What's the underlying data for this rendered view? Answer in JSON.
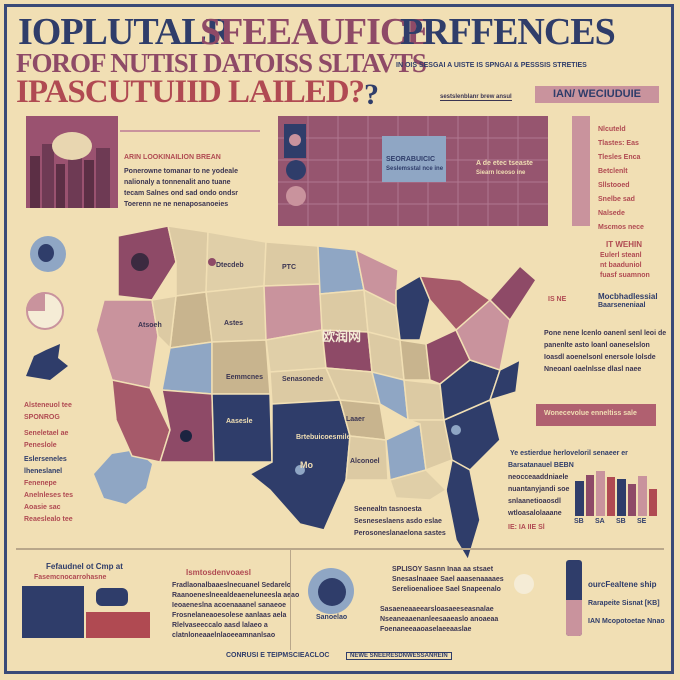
{
  "title": {
    "line1a": "IOPLUTALR",
    "line1b": "SFEEAUFICE",
    "line1c": "PRFFENCES",
    "line2": "FOROF NUTISI DATOISS SLTAVTS",
    "line3": "IPASCUTUIID LAILED?",
    "mark": "?"
  },
  "subtitle": "IN OIS SESGAI A UISTE IS SPNGAI & PESSSIS STRETIES",
  "tag_small": "sestslenblanr brew ansul",
  "tag_box": "IAN/ WECIUDUIE",
  "map_label": "欧润网",
  "palette": {
    "bg": "#f1dfb4",
    "navy": "#2f3d6a",
    "maroon": "#8e4a67",
    "rose": "#c9939d",
    "slate": "#8fa6c4",
    "tan": "#dccaa3",
    "red": "#b04a52"
  },
  "left_panel": {
    "heading": "ARIN LOOKINAILION BREAN",
    "lines": [
      "Ponerowne tomanar to ne yodeale",
      "nalionaly a tonnenalit ano tuane",
      "tecam Salnes ond sad ondo ondsr",
      "Toerenn ne ne nenaposanoeies"
    ]
  },
  "center_panel": {
    "box_title": "SEORABUICIC",
    "box_sub": "Seslemsstal nce ine",
    "right_title": "A de etec tseaste",
    "right_sub": "Siearn Iceoso ine"
  },
  "right_list": [
    "Nlcuteld",
    "Tlastes: Eas",
    "Tlesles Enca",
    "Betclenlt",
    "Sllstooed",
    "Snelbe sad",
    "Nalsede",
    "Mscmos nece"
  ],
  "right_block": {
    "title": "IT WEHIN",
    "lines": [
      "Eulerl steanl",
      "nt baaduniol",
      "fuasf suamnon"
    ]
  },
  "mid_right": {
    "tag": "IS NE",
    "title": "Mocbhadlessial",
    "sub": "Baarseneniaal",
    "para": [
      "Pone nene lcenlo oanenl senl leoi de",
      "panenlte asto loanl oaneselslon",
      "Ioasdl aoenelsonl enersole lolsde",
      "Nneoanl oaelnlsse dlasl naee"
    ]
  },
  "strip": "Wonecevolue enneltiss sale",
  "left_notes": [
    "Alsteneuol tee",
    "SPONROG",
    "Seneletael ae",
    "Peneslole",
    "Eslerseneles",
    "lheneslanel",
    "Fenenepe",
    "Anelnleses tes",
    "Aoasie sac",
    "Reaeslealo tee"
  ],
  "map_states": [
    "Dtecdeb",
    "PTC",
    "Atsoeh",
    "Astes",
    "Eemmcnes",
    "Senasonede",
    "Aasesle",
    "Laaer",
    "Alconoel",
    "Brtebuicoesmile",
    "Mo"
  ],
  "right_mid": {
    "head": "Ye estierdue herloveloril senaeer er",
    "lines": [
      "Barsatanauel BEBN",
      "neocceaaddniaele",
      "nuantanyjandi soe",
      "snlaanetioaosdl",
      "wtloasalolaaane"
    ],
    "foot": "IE: IA IIE Sl"
  },
  "below_map": [
    "Seenealtn tasnoesta",
    "Sesneseslaens asdo eslae",
    "Perosoneslanaelona sastes"
  ],
  "bottom_left": {
    "title": "Fefaudnel ot Cmp at",
    "sub": "Fasemcnocarrohasne"
  },
  "bottom_center": {
    "title": "Ismtosdenvoaesl",
    "lines": [
      "Fradlaonalbaaeslnecuanel Sedarelo",
      "Raanoeneslneealdeaeneluneesla aeao",
      "Ieoaeneslna acoenaaanel sanaeoe",
      "Frosnelaneaoesolese aanlaas aela",
      "Rlelvaseeccalo aasd lalaeo a",
      "clatnloneaaelnlaoeeamnanlsao"
    ]
  },
  "bottom_mid": {
    "caption": "Sanoelao",
    "lines": [
      "SPLISOY Sasnn Inaa aa stsaet",
      "Snesaslnaaee Sael aaasenaaaaes",
      "Serelioenalioee Sael Snapeenalo",
      "Sasaeneaaeearsloasaeeseasnalae",
      "Nseaneaaenanleesaaeaslo anoaeaa",
      "Foenaneeaaoaselaeeaaslae"
    ]
  },
  "bottom_right": {
    "line1": "ourcFealtene ship",
    "line2": "Rarapeite Sisnat [KB]",
    "line3": "IAN Mcopotoetae Nnao"
  },
  "footer": {
    "a": "CONRUSI E TEIPMSCIEACLOC",
    "b": "NEWE SNEERESDNWESSANREIN"
  },
  "chart_data": {
    "type": "bar",
    "categories": [
      "1",
      "2",
      "3",
      "4",
      "5",
      "6",
      "7",
      "8"
    ],
    "values": [
      62,
      74,
      80,
      70,
      66,
      58,
      72,
      48
    ],
    "labels": [
      "SB",
      "SA",
      "SB",
      "SE"
    ],
    "title": "",
    "xlabel": "",
    "ylabel": ""
  }
}
